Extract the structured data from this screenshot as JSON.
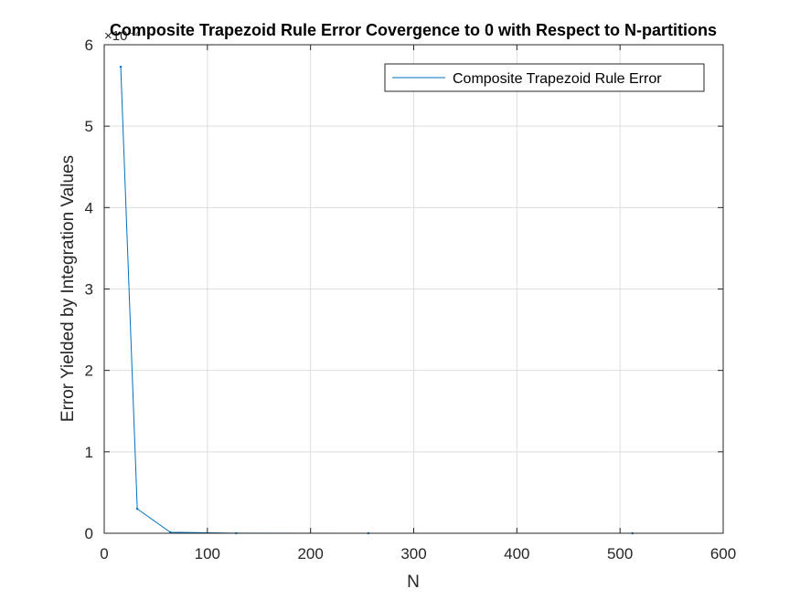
{
  "chart_data": {
    "type": "line",
    "title": "Composite Trapezoid Rule Error Covergence to 0 with Respect to N-partitions",
    "xlabel": "N",
    "ylabel": "Error Yielded by Integration Values",
    "y_exponent_label": "×10⁻⁴",
    "xlim": [
      0,
      600
    ],
    "ylim": [
      0,
      6
    ],
    "xticks": [
      0,
      100,
      200,
      300,
      400,
      500,
      600
    ],
    "yticks": [
      0,
      1,
      2,
      3,
      4,
      5,
      6
    ],
    "grid": true,
    "legend_position": "top-right",
    "series": [
      {
        "name": "Composite Trapezoid Rule Error",
        "color": "#0072bd",
        "x": [
          16,
          32,
          64,
          128,
          256,
          512
        ],
        "y": [
          5.73,
          0.3,
          0.012,
          0.0008,
          5e-05,
          3e-06
        ]
      }
    ]
  }
}
